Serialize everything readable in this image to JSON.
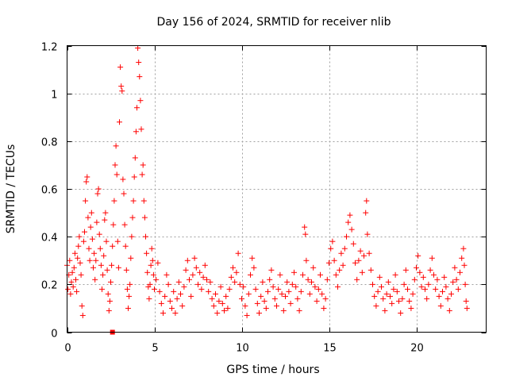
{
  "chart_data": {
    "type": "scatter",
    "title": "Day 156 of 2024, SRMTID for receiver nlib",
    "xlabel": "GPS time / hours",
    "ylabel": "SRMTID / TECUs",
    "xlim": [
      0,
      24
    ],
    "ylim": [
      0,
      1.2
    ],
    "grid": true,
    "x_ticks": [
      0,
      5,
      10,
      15,
      20
    ],
    "x_tick_labels": [
      "0",
      "5",
      "10",
      "15",
      "20"
    ],
    "y_ticks": [
      0,
      0.2,
      0.4,
      0.6,
      0.8,
      1.0,
      1.2
    ],
    "y_tick_labels": [
      "0",
      "0.2",
      "0.4",
      "0.6",
      "0.8",
      "1",
      "1.2"
    ],
    "marker": "+",
    "marker_color": "#ff0000",
    "series": [
      {
        "name": "SRMTID",
        "color": "#ff0000",
        "points": [
          [
            0.0,
            0.28
          ],
          [
            0.05,
            0.18
          ],
          [
            0.1,
            0.24
          ],
          [
            0.15,
            0.3
          ],
          [
            0.2,
            0.16
          ],
          [
            0.25,
            0.21
          ],
          [
            0.3,
            0.25
          ],
          [
            0.35,
            0.19
          ],
          [
            0.4,
            0.27
          ],
          [
            0.45,
            0.33
          ],
          [
            0.5,
            0.22
          ],
          [
            0.55,
            0.17
          ],
          [
            0.6,
            0.31
          ],
          [
            0.65,
            0.36
          ],
          [
            0.7,
            0.4
          ],
          [
            0.75,
            0.29
          ],
          [
            0.8,
            0.24
          ],
          [
            0.85,
            0.11
          ],
          [
            0.9,
            0.07
          ],
          [
            0.95,
            0.38
          ],
          [
            1.0,
            0.42
          ],
          [
            1.05,
            0.55
          ],
          [
            1.1,
            0.63
          ],
          [
            1.15,
            0.65
          ],
          [
            1.2,
            0.48
          ],
          [
            1.25,
            0.35
          ],
          [
            1.3,
            0.3
          ],
          [
            1.35,
            0.44
          ],
          [
            1.4,
            0.5
          ],
          [
            1.45,
            0.39
          ],
          [
            1.5,
            0.27
          ],
          [
            1.55,
            0.33
          ],
          [
            1.6,
            0.22
          ],
          [
            1.65,
            0.3
          ],
          [
            1.7,
            0.46
          ],
          [
            1.75,
            0.58
          ],
          [
            1.8,
            0.6
          ],
          [
            1.85,
            0.41
          ],
          [
            1.9,
            0.35
          ],
          [
            1.95,
            0.28
          ],
          [
            2.0,
            0.18
          ],
          [
            2.05,
            0.24
          ],
          [
            2.1,
            0.32
          ],
          [
            2.15,
            0.47
          ],
          [
            2.2,
            0.5
          ],
          [
            2.25,
            0.38
          ],
          [
            2.3,
            0.26
          ],
          [
            2.35,
            0.16
          ],
          [
            2.4,
            0.09
          ],
          [
            2.45,
            0.13
          ],
          [
            2.5,
            0.21
          ],
          [
            2.55,
            0.28
          ],
          [
            2.6,
            0.36
          ],
          [
            2.65,
            0.45
          ],
          [
            2.7,
            0.55
          ],
          [
            2.75,
            0.7
          ],
          [
            2.8,
            0.78
          ],
          [
            2.85,
            0.66
          ],
          [
            2.9,
            0.38
          ],
          [
            2.95,
            0.27
          ],
          [
            3.0,
            0.88
          ],
          [
            3.05,
            1.11
          ],
          [
            3.1,
            1.03
          ],
          [
            3.15,
            1.01
          ],
          [
            3.2,
            0.64
          ],
          [
            3.25,
            0.58
          ],
          [
            3.3,
            0.45
          ],
          [
            3.35,
            0.36
          ],
          [
            3.4,
            0.26
          ],
          [
            3.45,
            0.18
          ],
          [
            3.5,
            0.1
          ],
          [
            3.55,
            0.15
          ],
          [
            3.6,
            0.2
          ],
          [
            3.65,
            0.31
          ],
          [
            3.7,
            0.4
          ],
          [
            3.75,
            0.48
          ],
          [
            3.8,
            0.55
          ],
          [
            3.85,
            0.65
          ],
          [
            3.9,
            0.73
          ],
          [
            3.95,
            0.84
          ],
          [
            4.0,
            0.94
          ],
          [
            4.05,
            1.19
          ],
          [
            4.1,
            1.13
          ],
          [
            4.15,
            1.07
          ],
          [
            4.2,
            0.97
          ],
          [
            4.25,
            0.85
          ],
          [
            4.3,
            0.66
          ],
          [
            4.35,
            0.7
          ],
          [
            4.4,
            0.55
          ],
          [
            4.45,
            0.48
          ],
          [
            4.5,
            0.4
          ],
          [
            4.55,
            0.33
          ],
          [
            4.6,
            0.25
          ],
          [
            4.65,
            0.19
          ],
          [
            4.7,
            0.14
          ],
          [
            4.75,
            0.2
          ],
          [
            4.8,
            0.28
          ],
          [
            4.85,
            0.35
          ],
          [
            4.9,
            0.3
          ],
          [
            4.95,
            0.24
          ],
          [
            5.0,
            0.18
          ],
          [
            5.1,
            0.22
          ],
          [
            5.2,
            0.29
          ],
          [
            5.3,
            0.17
          ],
          [
            5.4,
            0.12
          ],
          [
            5.5,
            0.08
          ],
          [
            5.6,
            0.15
          ],
          [
            5.7,
            0.24
          ],
          [
            5.8,
            0.2
          ],
          [
            5.9,
            0.13
          ],
          [
            6.0,
            0.1
          ],
          [
            6.1,
            0.17
          ],
          [
            6.2,
            0.08
          ],
          [
            6.3,
            0.14
          ],
          [
            6.4,
            0.21
          ],
          [
            6.5,
            0.16
          ],
          [
            6.6,
            0.11
          ],
          [
            6.7,
            0.19
          ],
          [
            6.8,
            0.26
          ],
          [
            6.9,
            0.3
          ],
          [
            7.0,
            0.22
          ],
          [
            7.1,
            0.15
          ],
          [
            7.2,
            0.24
          ],
          [
            7.3,
            0.31
          ],
          [
            7.4,
            0.27
          ],
          [
            7.5,
            0.2
          ],
          [
            7.6,
            0.25
          ],
          [
            7.7,
            0.18
          ],
          [
            7.8,
            0.23
          ],
          [
            7.9,
            0.28
          ],
          [
            8.0,
            0.22
          ],
          [
            8.1,
            0.17
          ],
          [
            8.2,
            0.21
          ],
          [
            8.3,
            0.14
          ],
          [
            8.4,
            0.11
          ],
          [
            8.5,
            0.16
          ],
          [
            8.6,
            0.08
          ],
          [
            8.7,
            0.13
          ],
          [
            8.8,
            0.19
          ],
          [
            8.9,
            0.12
          ],
          [
            9.0,
            0.09
          ],
          [
            9.1,
            0.15
          ],
          [
            9.2,
            0.1
          ],
          [
            9.3,
            0.18
          ],
          [
            9.4,
            0.23
          ],
          [
            9.5,
            0.27
          ],
          [
            9.6,
            0.21
          ],
          [
            9.7,
            0.25
          ],
          [
            9.8,
            0.33
          ],
          [
            9.9,
            0.2
          ],
          [
            10.0,
            0.14
          ],
          [
            10.1,
            0.19
          ],
          [
            10.2,
            0.11
          ],
          [
            10.3,
            0.07
          ],
          [
            10.4,
            0.16
          ],
          [
            10.5,
            0.24
          ],
          [
            10.6,
            0.31
          ],
          [
            10.7,
            0.27
          ],
          [
            10.8,
            0.18
          ],
          [
            10.9,
            0.12
          ],
          [
            11.0,
            0.08
          ],
          [
            11.1,
            0.15
          ],
          [
            11.2,
            0.21
          ],
          [
            11.3,
            0.13
          ],
          [
            11.4,
            0.1
          ],
          [
            11.5,
            0.17
          ],
          [
            11.6,
            0.22
          ],
          [
            11.7,
            0.26
          ],
          [
            11.8,
            0.19
          ],
          [
            11.9,
            0.14
          ],
          [
            12.0,
            0.11
          ],
          [
            12.1,
            0.18
          ],
          [
            12.2,
            0.24
          ],
          [
            12.3,
            0.16
          ],
          [
            12.4,
            0.09
          ],
          [
            12.5,
            0.15
          ],
          [
            12.6,
            0.21
          ],
          [
            12.7,
            0.17
          ],
          [
            12.8,
            0.12
          ],
          [
            12.9,
            0.2
          ],
          [
            13.0,
            0.25
          ],
          [
            13.1,
            0.19
          ],
          [
            13.2,
            0.14
          ],
          [
            13.3,
            0.09
          ],
          [
            13.4,
            0.17
          ],
          [
            13.5,
            0.24
          ],
          [
            13.6,
            0.44
          ],
          [
            13.65,
            0.41
          ],
          [
            13.7,
            0.3
          ],
          [
            13.8,
            0.22
          ],
          [
            13.9,
            0.16
          ],
          [
            14.0,
            0.21
          ],
          [
            14.1,
            0.27
          ],
          [
            14.2,
            0.19
          ],
          [
            14.3,
            0.13
          ],
          [
            14.4,
            0.18
          ],
          [
            14.5,
            0.24
          ],
          [
            14.6,
            0.16
          ],
          [
            14.7,
            0.1
          ],
          [
            14.8,
            0.14
          ],
          [
            14.9,
            0.22
          ],
          [
            15.0,
            0.29
          ],
          [
            15.1,
            0.35
          ],
          [
            15.2,
            0.38
          ],
          [
            15.3,
            0.3
          ],
          [
            15.4,
            0.24
          ],
          [
            15.5,
            0.19
          ],
          [
            15.6,
            0.26
          ],
          [
            15.7,
            0.33
          ],
          [
            15.8,
            0.28
          ],
          [
            15.9,
            0.35
          ],
          [
            16.0,
            0.4
          ],
          [
            16.1,
            0.46
          ],
          [
            16.2,
            0.49
          ],
          [
            16.3,
            0.43
          ],
          [
            16.4,
            0.37
          ],
          [
            16.5,
            0.29
          ],
          [
            16.6,
            0.22
          ],
          [
            16.7,
            0.3
          ],
          [
            16.8,
            0.34
          ],
          [
            16.9,
            0.25
          ],
          [
            17.0,
            0.32
          ],
          [
            17.1,
            0.5
          ],
          [
            17.15,
            0.55
          ],
          [
            17.2,
            0.41
          ],
          [
            17.3,
            0.33
          ],
          [
            17.4,
            0.26
          ],
          [
            17.5,
            0.2
          ],
          [
            17.6,
            0.15
          ],
          [
            17.7,
            0.11
          ],
          [
            17.8,
            0.17
          ],
          [
            17.9,
            0.23
          ],
          [
            18.0,
            0.19
          ],
          [
            18.1,
            0.14
          ],
          [
            18.2,
            0.09
          ],
          [
            18.3,
            0.16
          ],
          [
            18.4,
            0.21
          ],
          [
            18.5,
            0.15
          ],
          [
            18.6,
            0.12
          ],
          [
            18.7,
            0.18
          ],
          [
            18.8,
            0.24
          ],
          [
            18.9,
            0.17
          ],
          [
            19.0,
            0.13
          ],
          [
            19.1,
            0.08
          ],
          [
            19.2,
            0.14
          ],
          [
            19.3,
            0.2
          ],
          [
            19.4,
            0.26
          ],
          [
            19.5,
            0.18
          ],
          [
            19.6,
            0.13
          ],
          [
            19.7,
            0.1
          ],
          [
            19.8,
            0.16
          ],
          [
            19.9,
            0.22
          ],
          [
            20.0,
            0.27
          ],
          [
            20.1,
            0.32
          ],
          [
            20.2,
            0.25
          ],
          [
            20.3,
            0.19
          ],
          [
            20.4,
            0.23
          ],
          [
            20.5,
            0.18
          ],
          [
            20.6,
            0.14
          ],
          [
            20.7,
            0.2
          ],
          [
            20.8,
            0.26
          ],
          [
            20.9,
            0.31
          ],
          [
            21.0,
            0.24
          ],
          [
            21.1,
            0.18
          ],
          [
            21.2,
            0.22
          ],
          [
            21.3,
            0.15
          ],
          [
            21.4,
            0.11
          ],
          [
            21.5,
            0.17
          ],
          [
            21.6,
            0.23
          ],
          [
            21.7,
            0.19
          ],
          [
            21.8,
            0.14
          ],
          [
            21.9,
            0.09
          ],
          [
            22.0,
            0.16
          ],
          [
            22.1,
            0.21
          ],
          [
            22.2,
            0.27
          ],
          [
            22.3,
            0.22
          ],
          [
            22.4,
            0.18
          ],
          [
            22.5,
            0.25
          ],
          [
            22.6,
            0.31
          ],
          [
            22.7,
            0.35
          ],
          [
            22.75,
            0.28
          ],
          [
            22.8,
            0.2
          ],
          [
            22.85,
            0.13
          ],
          [
            22.9,
            0.1
          ]
        ]
      },
      {
        "name": "outlier-marker",
        "color": "#ff0000",
        "marker": "square",
        "points": [
          [
            2.6,
            0.0
          ]
        ]
      }
    ]
  }
}
